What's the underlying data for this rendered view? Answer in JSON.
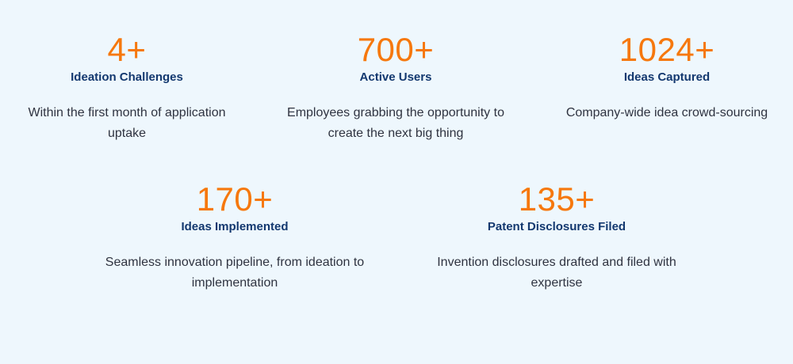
{
  "stats": [
    {
      "number": "4+",
      "title": "Ideation Challenges",
      "description": "Within the first month of application uptake"
    },
    {
      "number": "700+",
      "title": "Active Users",
      "description": "Employees grabbing the opportunity to create the next big thing"
    },
    {
      "number": "1024+",
      "title": "Ideas Captured",
      "description": "Company-wide idea crowd-sourcing"
    },
    {
      "number": "170+",
      "title": "Ideas Implemented",
      "description": "Seamless innovation pipeline, from ideation to implementation"
    },
    {
      "number": "135+",
      "title": "Patent Disclosures Filed",
      "description": "Invention disclosures drafted and filed with expertise"
    }
  ]
}
